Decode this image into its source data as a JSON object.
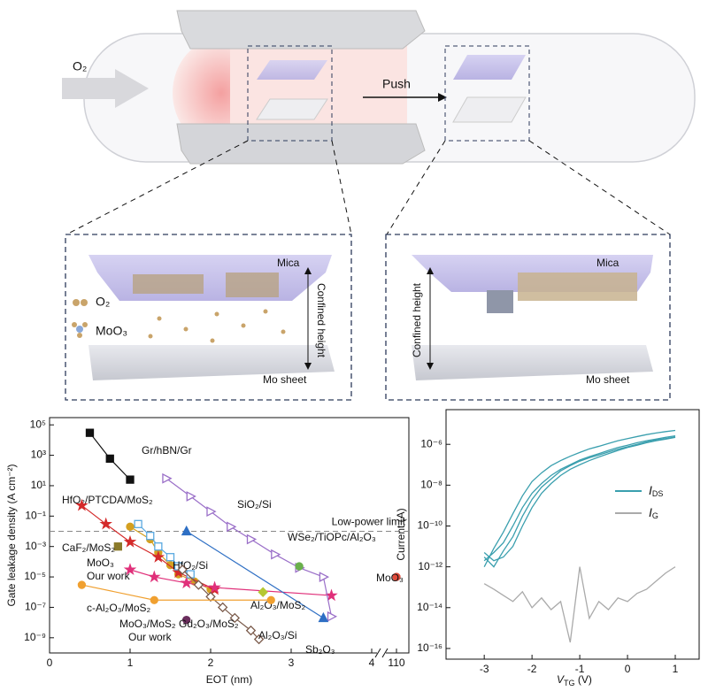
{
  "schematic": {
    "gas": "O₂",
    "push": "Push",
    "left_panel": {
      "top": "Mica",
      "side": "Confined height",
      "legend": [
        "O₂",
        "MoO₃"
      ],
      "bottom": "Mo sheet"
    },
    "right_panel": {
      "top": "Mica",
      "side": "Confined height",
      "bottom": "Mo sheet"
    }
  },
  "chart_data": [
    {
      "type": "scatter",
      "x_label": "EOT (nm)",
      "y_label": "Gate leakage density (A cm⁻²)",
      "log_y": true,
      "x_break": true,
      "xlim": [
        0,
        110
      ],
      "xticks": [
        0,
        1,
        2,
        3,
        4,
        110
      ],
      "ylim": [
        1e-10,
        300000
      ],
      "yticks": [
        {
          "value": 1e-09,
          "label": "10⁻⁹"
        },
        {
          "value": 1e-07,
          "label": "10⁻⁷"
        },
        {
          "value": 1e-05,
          "label": "10⁻⁵"
        },
        {
          "value": 0.001,
          "label": "10⁻³"
        },
        {
          "value": 0.1,
          "label": "10⁻¹"
        },
        {
          "value": 10,
          "label": "10¹"
        },
        {
          "value": 1000,
          "label": "10³"
        },
        {
          "value": 100000,
          "label": "10⁵"
        }
      ],
      "low_power_limit": {
        "value": 0.01,
        "label": "Low-power limit"
      },
      "annotations": [
        "Our work",
        "Our work"
      ],
      "series": [
        {
          "name": "Gr/hBN/Gr",
          "color": "#111111",
          "marker": "square",
          "filled": true,
          "x": [
            0.5,
            0.75,
            1.0
          ],
          "values": [
            30000,
            600,
            25
          ]
        },
        {
          "name": "HfO₂/PTCDA/MoS₂",
          "color": "#d4a020",
          "marker": "circle",
          "filled": true,
          "x": [
            1.0,
            1.25,
            1.35,
            1.5,
            1.6,
            1.8,
            2.0
          ],
          "values": [
            0.02,
            0.003,
            0.0004,
            6e-05,
            1.5e-05,
            5e-06,
            1.5e-06
          ]
        },
        {
          "name": "CaF₂/MoS₂",
          "color": "#8b7a2a",
          "marker": "square",
          "filled": true,
          "x": [
            0.85
          ],
          "values": [
            0.001
          ]
        },
        {
          "name": "MoO₃",
          "color": "#d42a2a",
          "marker": "star",
          "filled": true,
          "x": [
            0.4,
            0.7,
            1.0,
            1.35,
            1.6,
            2.05
          ],
          "values": [
            0.5,
            0.03,
            0.002,
            0.0002,
            2e-05,
            1.5e-06
          ]
        },
        {
          "name": "MoO₃/MoS₂",
          "color": "#e0307a",
          "marker": "star",
          "filled": true,
          "x": [
            1.0,
            1.3,
            1.7,
            2.05,
            3.5
          ],
          "values": [
            3e-05,
            1e-05,
            4e-06,
            2e-06,
            6e-07
          ]
        },
        {
          "name": "HfO₂/Si",
          "color": "#5aa9e0",
          "marker": "square",
          "filled": false,
          "x": [
            1.1,
            1.25,
            1.35,
            1.5,
            1.6,
            1.75
          ],
          "values": [
            0.03,
            0.005,
            0.001,
            0.0002,
            5e-05,
            1.5e-05
          ]
        },
        {
          "name": "SiO₂/Si",
          "color": "#9a6fc8",
          "marker": "tri-right",
          "filled": false,
          "x": [
            1.45,
            1.75,
            2.0,
            2.25,
            2.5,
            2.8,
            3.1,
            3.4,
            3.5
          ],
          "values": [
            30,
            2,
            0.2,
            0.02,
            0.003,
            0.0003,
            4e-05,
            1e-05,
            2.5e-08
          ]
        },
        {
          "name": "Sb₂O₃",
          "color": "#2e6fc4",
          "marker": "tri-up",
          "filled": true,
          "x": [
            1.7,
            3.4
          ],
          "values": [
            0.01,
            2e-08
          ]
        },
        {
          "name": "Al₂O₃/Si",
          "color": "#7a5a4a",
          "marker": "diamond",
          "filled": false,
          "x": [
            1.65,
            1.85,
            2.0,
            2.15,
            2.3,
            2.5,
            2.6
          ],
          "values": [
            3e-05,
            3e-06,
            5e-07,
            1e-07,
            2e-08,
            3e-09,
            8e-10
          ]
        },
        {
          "name": "Al₂O₃/MoS₂",
          "color": "#b5c832",
          "marker": "diamond",
          "filled": true,
          "x": [
            2.65
          ],
          "values": [
            1e-06
          ]
        },
        {
          "name": "WSe₂/TiOPc/Al₂O₃",
          "color": "#6ab04c",
          "marker": "circle",
          "filled": true,
          "x": [
            3.1
          ],
          "values": [
            5e-05
          ]
        },
        {
          "name": "c-Al₂O₃/MoS₂",
          "color": "#f0a030",
          "marker": "circle",
          "filled": true,
          "x": [
            0.4,
            1.3,
            2.75
          ],
          "values": [
            3e-06,
            3e-07,
            3e-07
          ]
        },
        {
          "name": "Gd₂O₃/MoS₂",
          "color": "#6b2e5e",
          "marker": "circle",
          "filled": true,
          "x": [
            1.7
          ],
          "values": [
            1.5e-08
          ]
        },
        {
          "name": "MoO₃",
          "color": "#e04a3a",
          "marker": "circle",
          "filled": true,
          "x": [
            110
          ],
          "values": [
            1e-05
          ]
        }
      ]
    },
    {
      "type": "line",
      "x_label": "VTG (V)",
      "y_label": "Current (A)",
      "log_y": true,
      "xlim": [
        -3.8,
        1.5
      ],
      "xticks": [
        -3,
        -2,
        -1,
        0,
        1
      ],
      "ylim": [
        3e-17,
        5e-05
      ],
      "yticks": [
        {
          "value": 1e-16,
          "label": "10⁻¹⁶"
        },
        {
          "value": 1e-14,
          "label": "10⁻¹⁴"
        },
        {
          "value": 1e-12,
          "label": "10⁻¹²"
        },
        {
          "value": 1e-10,
          "label": "10⁻¹⁰"
        },
        {
          "value": 1e-08,
          "label": "10⁻⁸"
        },
        {
          "value": 1e-06,
          "label": "10⁻⁶"
        }
      ],
      "x": [
        -3,
        -2.8,
        -2.6,
        -2.4,
        -2.2,
        -2,
        -1.8,
        -1.6,
        -1.4,
        -1.2,
        -1,
        -0.8,
        -0.6,
        -0.4,
        -0.2,
        0,
        0.2,
        0.4,
        0.6,
        0.8,
        1
      ],
      "series": [
        {
          "name": "IDS",
          "color": "#3a9fae",
          "values": [
            2e-12,
            5e-12,
            1.5e-11,
            1e-10,
            8e-10,
            4e-09,
            1.2e-08,
            3e-08,
            6e-08,
            1e-07,
            1.7e-07,
            2.5e-07,
            3.5e-07,
            5e-07,
            7e-07,
            9e-07,
            1.2e-06,
            1.5e-06,
            1.8e-06,
            2.2e-06,
            2.6e-06
          ]
        },
        {
          "color": "#3a9fae",
          "values": [
            5e-12,
            2e-12,
            3e-12,
            1e-11,
            1e-10,
            8e-10,
            4e-09,
            1.2e-08,
            3e-08,
            6e-08,
            1e-07,
            1.6e-07,
            2.4e-07,
            3.5e-07,
            5e-07,
            7e-07,
            9e-07,
            1.2e-06,
            1.5e-06,
            1.8e-06,
            2.2e-06
          ]
        },
        {
          "color": "#3a9fae",
          "values": [
            1e-12,
            8e-12,
            5e-11,
            4e-10,
            3e-09,
            1.5e-08,
            4e-08,
            9e-08,
            1.6e-07,
            2.6e-07,
            4e-07,
            6e-07,
            8e-07,
            1.1e-06,
            1.5e-06,
            1.9e-06,
            2.4e-06,
            3e-06,
            3.6e-06,
            4.2e-06,
            4.8e-06
          ]
        },
        {
          "color": "#3a9fae",
          "values": [
            3e-12,
            1e-12,
            6e-12,
            3e-11,
            3e-10,
            2e-09,
            8e-09,
            2e-08,
            5e-08,
            9e-08,
            1.5e-07,
            2.2e-07,
            3e-07,
            4.2e-07,
            5.8e-07,
            7.6e-07,
            1e-06,
            1.3e-06,
            1.6e-06,
            1.9e-06,
            2.3e-06
          ]
        },
        {
          "name": "IG",
          "color": "#aaaaaa",
          "values": [
            1.5e-13,
            8e-14,
            4e-14,
            2e-14,
            6e-14,
            1e-14,
            3e-14,
            8e-15,
            2e-14,
            2e-16,
            1e-12,
            3e-15,
            2e-14,
            8e-15,
            3e-14,
            2e-14,
            5e-14,
            8e-14,
            2e-13,
            5e-13,
            1e-12
          ]
        }
      ]
    }
  ]
}
